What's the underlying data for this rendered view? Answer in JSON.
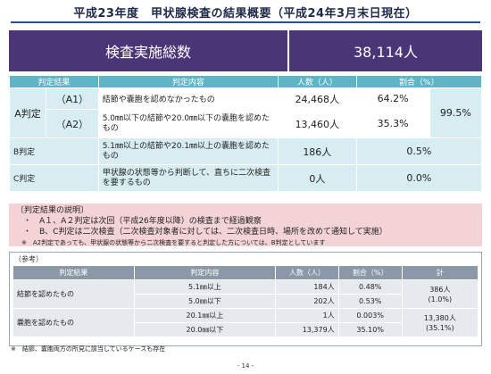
{
  "title": "平成23年度　甲状腺検査の結果概要（平成24年3月末日現在）",
  "banner": {
    "label": "検査実施総数",
    "value": "38,114人"
  },
  "main_table": {
    "headers": [
      "判定結果",
      "判定内容",
      "人数（人）",
      "割合（%）"
    ],
    "a_group": "A判定",
    "a_total_pct": "99.5%",
    "rows": [
      {
        "code": "（A1）",
        "content": "結節や嚢胞を認めなかったもの",
        "count": "24,468人",
        "pct": "64.2%"
      },
      {
        "code": "（A2）",
        "content": "5.0㎜以下の結節や20.0㎜以下の嚢胞を認めたもの",
        "count": "13,460人",
        "pct": "35.3%"
      },
      {
        "code": "B判定",
        "content": "5.1㎜以上の結節や20.1㎜以上の嚢胞を認めたもの",
        "count": "186人",
        "pct": "0.5%"
      },
      {
        "code": "C判定",
        "content": "甲状腺の状態等から判断して、直ちに二次検査を要するもの",
        "count": "0人",
        "pct": "0.0%"
      }
    ]
  },
  "explanation": {
    "heading": "〔判定結果の説明〕",
    "items": [
      "・　A１、A２判定は次回（平成26年度以降）の検査まで経過観察",
      "・　B、C判定は二次検査（二次検査対象者に対しては、二次検査日時、場所を改めて通知して実施）"
    ],
    "note": "※　A2判定であっても、甲状腺の状態等から二次検査を要すると判定した方については、B判定としています"
  },
  "reference": {
    "label": "（参考）",
    "headers": [
      "判定結果",
      "判定内容",
      "人数（人）",
      "割合（%）",
      "計"
    ],
    "groups": [
      {
        "name": "結節を認めたもの",
        "total": "386人",
        "total_pct": "(1.0%)",
        "rows": [
          {
            "content": "5.1㎜以上",
            "count": "184人",
            "pct": "0.48%"
          },
          {
            "content": "5.0㎜以下",
            "count": "202人",
            "pct": "0.53%"
          }
        ]
      },
      {
        "name": "嚢胞を認めたもの",
        "total": "13,380人",
        "total_pct": "(35.1%)",
        "rows": [
          {
            "content": "20.1㎜以上",
            "count": "1人",
            "pct": "0.003%"
          },
          {
            "content": "20.0㎜以下",
            "count": "13,379人",
            "pct": "35.10%"
          }
        ]
      }
    ]
  },
  "footnote": "※　結節、嚢胞両方の所見に該当しているケースも存在",
  "page_number": "- 14 -",
  "colors": {
    "banner": "#4a3576",
    "header": "#5fb4c6",
    "note_bg": "#f3d3d6",
    "ref_header": "#8a98a8"
  }
}
